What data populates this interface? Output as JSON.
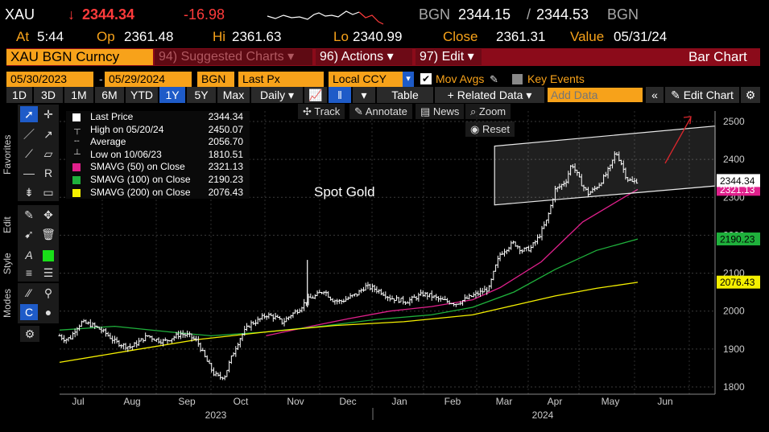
{
  "header": {
    "ticker": "XAU",
    "arrow": "↓",
    "last": "2344.34",
    "change": "-16.98",
    "src1": "BGN",
    "bid": "2344.15",
    "sep": "/",
    "ask": "2344.53",
    "src2": "BGN",
    "at_label": "At",
    "at_value": "5:44",
    "op_label": "Op",
    "op_value": "2361.48",
    "hi_label": "Hi",
    "hi_value": "2361.63",
    "lo_label": "Lo",
    "lo_value": "2340.99",
    "close_label": "Close",
    "close_value": "2361.31",
    "value_label": "Value",
    "value_value": "05/31/24"
  },
  "menubar": {
    "security": "XAU BGN Curncy",
    "suggested": "94) Suggested Charts ▾",
    "actions": "96) Actions ▾",
    "edit": "97) Edit ▾",
    "charttype": "Bar Chart"
  },
  "controls": {
    "start_date": "05/30/2023",
    "dash": "-",
    "end_date": "05/29/2024",
    "source": "BGN",
    "field": "Last Px",
    "currency": "Local CCY",
    "mov_avgs": "Mov Avgs",
    "key_events": "Key Events"
  },
  "timebar": {
    "ranges": [
      "1D",
      "3D",
      "1M",
      "6M",
      "YTD",
      "1Y",
      "5Y",
      "Max"
    ],
    "selected": "1Y",
    "period": "Daily ▾",
    "table": "Table",
    "related": "+ Related Data ▾",
    "add_placeholder": "Add Data",
    "collapse": "«",
    "edit_chart": "Edit Chart"
  },
  "tools": {
    "track": "Track",
    "annotate": "Annotate",
    "news": "News",
    "zoom": "Zoom",
    "reset": "Reset"
  },
  "sidebar": {
    "labels": [
      "Favorites",
      "Edit",
      "Style",
      "Modes"
    ]
  },
  "legend": [
    {
      "name": "Last Price",
      "value": "2344.34",
      "color": "#ffffff"
    },
    {
      "name": "High on 05/20/24",
      "value": "2450.07",
      "color": ""
    },
    {
      "name": "Average",
      "value": "2056.70",
      "color": ""
    },
    {
      "name": "Low on 10/06/23",
      "value": "1810.51",
      "color": ""
    },
    {
      "name": "SMAVG (50)  on Close",
      "value": "2321.13",
      "color": "#e0208c"
    },
    {
      "name": "SMAVG (100)  on Close",
      "value": "2190.23",
      "color": "#1fb13c"
    },
    {
      "name": "SMAVG (200)  on Close",
      "value": "2076.43",
      "color": "#f5f000"
    }
  ],
  "chart_data": {
    "type": "bar",
    "title": "Spot Gold",
    "yticks": [
      1800,
      1900,
      2000,
      2100,
      2200,
      2300,
      2400,
      2500
    ],
    "ylim": [
      1785,
      2530
    ],
    "months": [
      "Jul",
      "Aug",
      "Sep",
      "Oct",
      "Nov",
      "Dec",
      "Jan",
      "Feb",
      "Mar",
      "Apr",
      "May",
      "Jun"
    ],
    "years": [
      "2023",
      "2024"
    ],
    "grid": true,
    "price_path": [
      [
        0,
        1935
      ],
      [
        4,
        1925
      ],
      [
        8,
        1930
      ],
      [
        12,
        1955
      ],
      [
        16,
        1970
      ],
      [
        22,
        1965
      ],
      [
        28,
        1955
      ],
      [
        34,
        1940
      ],
      [
        40,
        1920
      ],
      [
        46,
        1910
      ],
      [
        52,
        1905
      ],
      [
        58,
        1920
      ],
      [
        64,
        1935
      ],
      [
        70,
        1925
      ],
      [
        76,
        1920
      ],
      [
        82,
        1930
      ],
      [
        88,
        1940
      ],
      [
        94,
        1935
      ],
      [
        100,
        1920
      ],
      [
        106,
        1875
      ],
      [
        112,
        1835
      ],
      [
        116,
        1825
      ],
      [
        120,
        1830
      ],
      [
        124,
        1870
      ],
      [
        128,
        1905
      ],
      [
        132,
        1935
      ],
      [
        138,
        1965
      ],
      [
        144,
        1975
      ],
      [
        150,
        1990
      ],
      [
        156,
        1985
      ],
      [
        162,
        1970
      ],
      [
        168,
        1990
      ],
      [
        174,
        2005
      ],
      [
        180,
        2030
      ],
      [
        186,
        2040
      ],
      [
        192,
        2055
      ],
      [
        198,
        2030
      ],
      [
        204,
        2025
      ],
      [
        210,
        2035
      ],
      [
        216,
        2045
      ],
      [
        222,
        2065
      ],
      [
        228,
        2060
      ],
      [
        234,
        2050
      ],
      [
        240,
        2035
      ],
      [
        246,
        2030
      ],
      [
        252,
        2025
      ],
      [
        258,
        2035
      ],
      [
        264,
        2045
      ],
      [
        270,
        2040
      ],
      [
        276,
        2030
      ],
      [
        282,
        2025
      ],
      [
        288,
        2020
      ],
      [
        294,
        2030
      ],
      [
        300,
        2040
      ],
      [
        306,
        2050
      ],
      [
        312,
        2060
      ],
      [
        316,
        2110
      ],
      [
        320,
        2150
      ],
      [
        326,
        2170
      ],
      [
        330,
        2180
      ],
      [
        336,
        2160
      ],
      [
        342,
        2165
      ],
      [
        348,
        2195
      ],
      [
        354,
        2240
      ],
      [
        360,
        2320
      ],
      [
        364,
        2330
      ],
      [
        368,
        2345
      ],
      [
        372,
        2390
      ],
      [
        376,
        2360
      ],
      [
        380,
        2330
      ],
      [
        384,
        2310
      ],
      [
        388,
        2320
      ],
      [
        392,
        2335
      ],
      [
        396,
        2355
      ],
      [
        400,
        2380
      ],
      [
        404,
        2420
      ],
      [
        408,
        2390
      ],
      [
        412,
        2350
      ],
      [
        416,
        2340
      ],
      [
        420,
        2344
      ]
    ],
    "spike": {
      "x": 180,
      "high": 2135,
      "low": 2010
    },
    "series": [
      {
        "name": "SMAVG (50)  on Close",
        "color": "#e0208c",
        "points": [
          [
            150,
            1935
          ],
          [
            180,
            1958
          ],
          [
            210,
            1980
          ],
          [
            240,
            2000
          ],
          [
            270,
            2012
          ],
          [
            300,
            2030
          ],
          [
            320,
            2062
          ],
          [
            350,
            2130
          ],
          [
            380,
            2235
          ],
          [
            410,
            2300
          ],
          [
            420,
            2321
          ]
        ]
      },
      {
        "name": "SMAVG (100)  on Close",
        "color": "#1fb13c",
        "points": [
          [
            0,
            1950
          ],
          [
            40,
            1960
          ],
          [
            80,
            1945
          ],
          [
            110,
            1935
          ],
          [
            150,
            1945
          ],
          [
            190,
            1960
          ],
          [
            230,
            1978
          ],
          [
            270,
            1990
          ],
          [
            300,
            2010
          ],
          [
            330,
            2050
          ],
          [
            360,
            2110
          ],
          [
            390,
            2160
          ],
          [
            420,
            2190
          ]
        ]
      },
      {
        "name": "SMAVG (200)  on Close",
        "color": "#f5f000",
        "points": [
          [
            0,
            1865
          ],
          [
            50,
            1895
          ],
          [
            100,
            1925
          ],
          [
            150,
            1945
          ],
          [
            200,
            1962
          ],
          [
            250,
            1972
          ],
          [
            300,
            1990
          ],
          [
            330,
            2015
          ],
          [
            360,
            2040
          ],
          [
            390,
            2060
          ],
          [
            420,
            2076
          ]
        ]
      }
    ],
    "channel": {
      "x1": 316,
      "x2": 420,
      "top": [
        2435,
        2488
      ],
      "bottom": [
        2280,
        2330
      ]
    },
    "price_label": "2344.34",
    "ma_labels": [
      {
        "text": "2321.13",
        "value": 2321.13,
        "color": "#e0208c"
      },
      {
        "text": "2190.23",
        "value": 2190.23,
        "color": "#1fb13c"
      },
      {
        "text": "2076.43",
        "value": 2076.43,
        "color": "#f5f000"
      }
    ]
  }
}
